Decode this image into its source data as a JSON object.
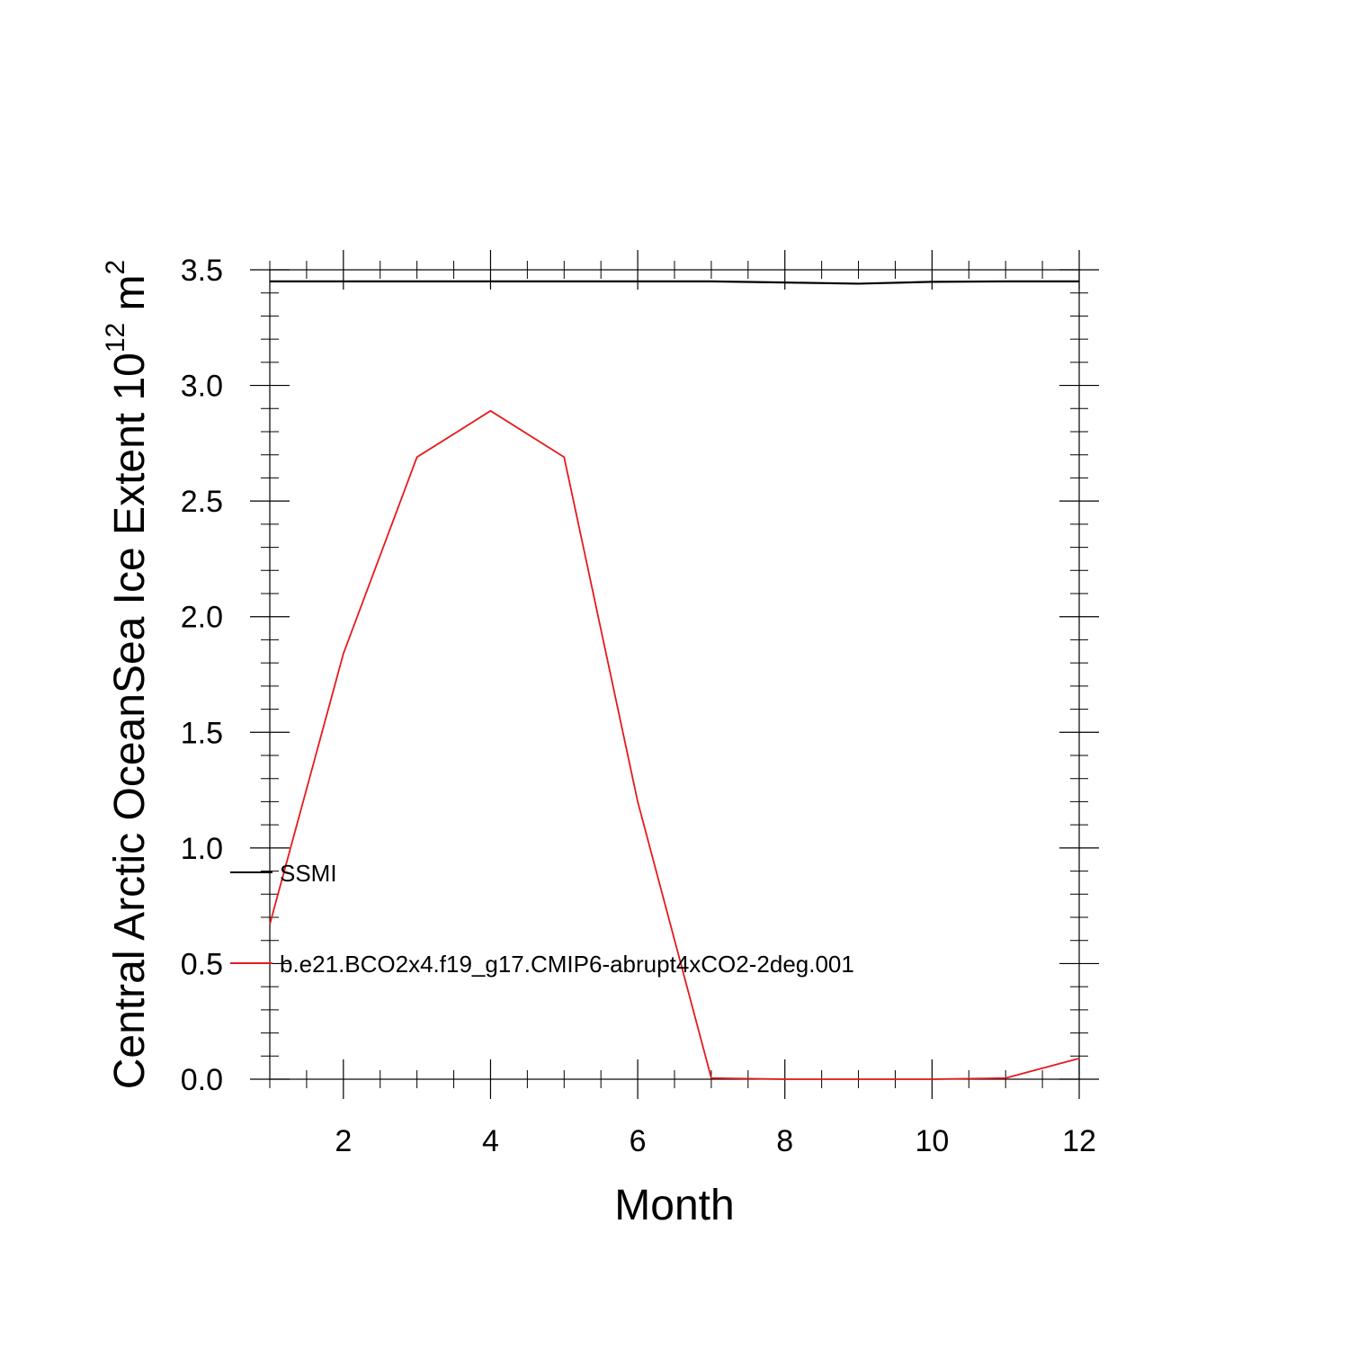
{
  "chart_data": {
    "type": "line",
    "xlabel": "Month",
    "ylabel": {
      "main": "Central Arctic OceanSea Ice Extent 10",
      "exp": "12",
      "unit": " m",
      "unit_exp": "2"
    },
    "xlim": [
      1,
      12
    ],
    "ylim": [
      0,
      3.5
    ],
    "x_ticks": [
      2,
      4,
      6,
      8,
      10,
      12
    ],
    "x_tick_labels": [
      "2",
      "4",
      "6",
      "8",
      "10",
      "12"
    ],
    "y_ticks": [
      0,
      0.5,
      1.0,
      1.5,
      2.0,
      2.5,
      3.0,
      3.5
    ],
    "y_tick_labels": [
      "0.0",
      "0.5",
      "1.0",
      "1.5",
      "2.0",
      "2.5",
      "3.0",
      "3.5"
    ],
    "x": [
      1,
      2,
      3,
      4,
      5,
      6,
      7,
      8,
      9,
      10,
      11,
      12
    ],
    "series": [
      {
        "name": "SSMI",
        "color": "#000000",
        "values": [
          3.45,
          3.45,
          3.45,
          3.45,
          3.45,
          3.45,
          3.45,
          3.445,
          3.44,
          3.448,
          3.45,
          3.45
        ]
      },
      {
        "name": "b.e21.BCO2x4.f19_g17.CMIP6-abrupt4xCO2-2deg.001",
        "color": "#e41a1c",
        "values": [
          0.67,
          1.84,
          2.69,
          2.89,
          2.69,
          1.2,
          0.005,
          0.0,
          0.0,
          0.0,
          0.005,
          0.09
        ]
      }
    ],
    "legend_position": "inside-lower-left",
    "grid": false
  }
}
